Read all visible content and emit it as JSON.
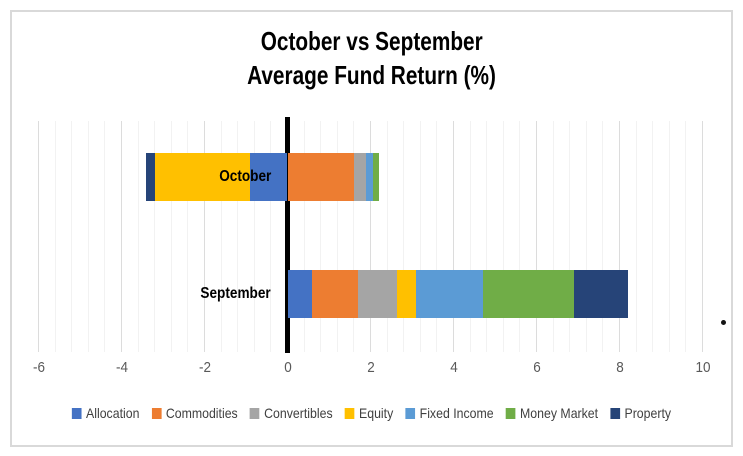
{
  "title": {
    "line1": "October vs September",
    "line2": "Average Fund Return (%)"
  },
  "chart_data": {
    "type": "bar",
    "orientation": "horizontal",
    "stacked": true,
    "title": "October vs September Average Fund Return (%)",
    "categories": [
      "October",
      "September"
    ],
    "series": [
      {
        "name": "Allocation",
        "color": "#4472C4",
        "values": [
          -0.9,
          0.6
        ]
      },
      {
        "name": "Commodities",
        "color": "#ED7D31",
        "values": [
          1.6,
          1.1
        ]
      },
      {
        "name": "Convertibles",
        "color": "#A5A5A5",
        "values": [
          0.3,
          0.95
        ]
      },
      {
        "name": "Equity",
        "color": "#FFC000",
        "values": [
          -2.3,
          0.45
        ]
      },
      {
        "name": "Fixed Income",
        "color": "#5B9BD5",
        "values": [
          0.15,
          1.6
        ]
      },
      {
        "name": "Money Market",
        "color": "#70AD47",
        "values": [
          0.15,
          2.2
        ]
      },
      {
        "name": "Property",
        "color": "#264478",
        "values": [
          -0.2,
          1.3
        ]
      }
    ],
    "xlim": [
      -6,
      10
    ],
    "x_tick_values": [
      -6,
      -4,
      -2,
      0,
      2,
      4,
      6,
      8,
      10
    ],
    "x_tick_labels": [
      "-6",
      "-4",
      "-2",
      "0",
      "2",
      "4",
      "6",
      "8",
      "10"
    ],
    "x_major_unit": 2,
    "x_minor_unit": 0.4,
    "grid": true,
    "zero_line": true,
    "legend_position": "bottom",
    "colors": {
      "grid_minor": "#F2F2F2",
      "grid_major": "#DCDCDC",
      "axis_text": "#595959",
      "zero_line": "#000000",
      "frame_border": "#D9D9D9"
    }
  },
  "stray_mark": "."
}
